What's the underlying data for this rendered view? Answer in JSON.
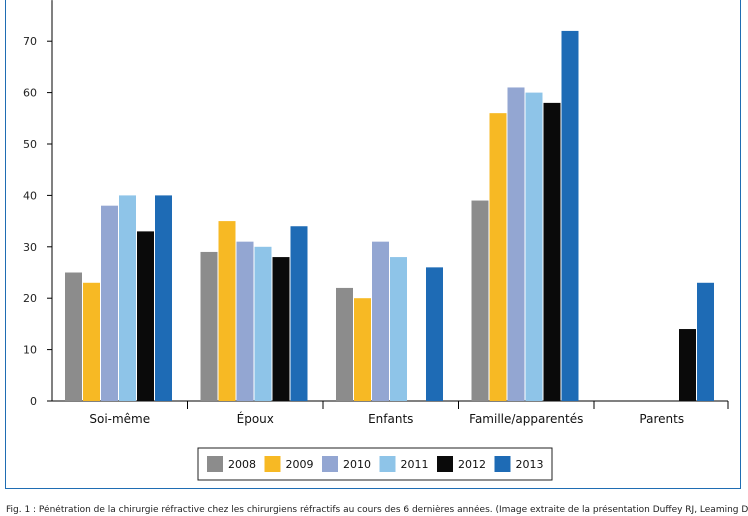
{
  "chart_data": {
    "type": "bar",
    "categories": [
      "Soi-même",
      "Époux",
      "Enfants",
      "Famille/apparentés",
      "Parents"
    ],
    "series": [
      {
        "name": "2008",
        "color": "#8c8c8c",
        "values": [
          25,
          29,
          22,
          39,
          null
        ]
      },
      {
        "name": "2009",
        "color": "#f7b924",
        "values": [
          23,
          35,
          20,
          56,
          null
        ]
      },
      {
        "name": "2010",
        "color": "#93a6d2",
        "values": [
          38,
          31,
          31,
          61,
          null
        ]
      },
      {
        "name": "2011",
        "color": "#8ec4e8",
        "values": [
          40,
          30,
          28,
          60,
          null
        ]
      },
      {
        "name": "2012",
        "color": "#0a0a0a",
        "values": [
          33,
          28,
          null,
          58,
          14
        ]
      },
      {
        "name": "2013",
        "color": "#1e6bb5",
        "values": [
          40,
          34,
          26,
          72,
          23
        ]
      }
    ],
    "yticks": [
      0,
      10,
      20,
      30,
      40,
      50,
      60,
      70
    ],
    "ylim": [
      0,
      78
    ],
    "xlabel": "",
    "ylabel": "",
    "title": "",
    "legend_position": "bottom-center",
    "grid": false
  },
  "caption": "Fig. 1 : Pénétration de la chirurgie réfractive chez les chirurgiens réfractifs au cours des 6 dernières années. (Image extraite de la présentation Duffey RJ, Leaming D"
}
